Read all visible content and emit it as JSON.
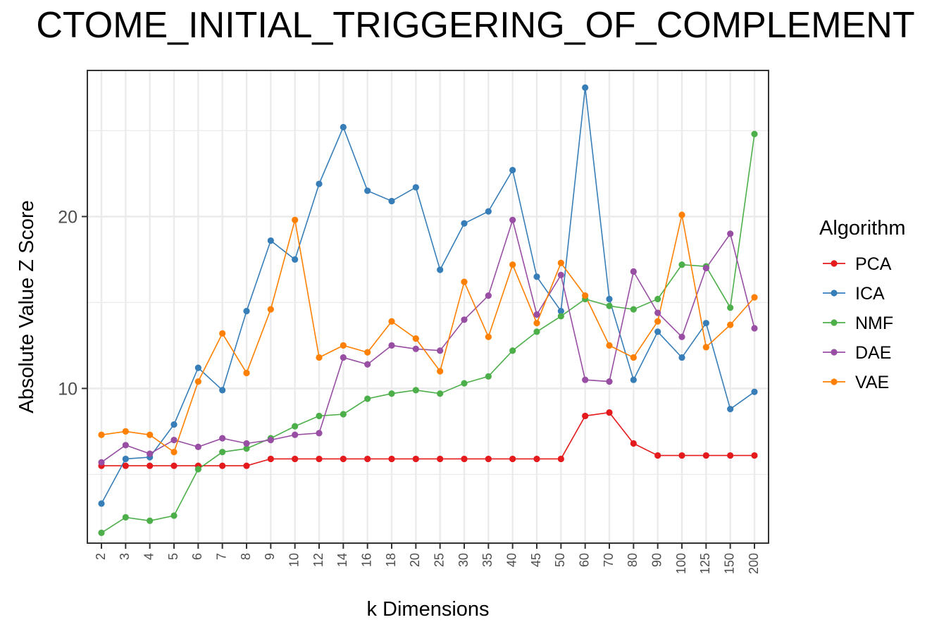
{
  "chart_data": {
    "type": "line",
    "title": "CTOME_INITIAL_TRIGGERING_OF_COMPLEMENT",
    "xlabel": "k Dimensions",
    "ylabel": "Absolute Value Z Score",
    "categories": [
      "2",
      "3",
      "4",
      "5",
      "6",
      "7",
      "8",
      "9",
      "10",
      "12",
      "14",
      "16",
      "18",
      "20",
      "25",
      "30",
      "35",
      "40",
      "45",
      "50",
      "60",
      "70",
      "80",
      "90",
      "100",
      "125",
      "150",
      "200"
    ],
    "y_ticks": [
      10,
      20
    ],
    "ylim": [
      1.0,
      28.5
    ],
    "grid": true,
    "legend_title": "Algorithm",
    "legend_position": "right",
    "series": [
      {
        "name": "PCA",
        "color": "#E41A1C",
        "values": [
          5.5,
          5.5,
          5.5,
          5.5,
          5.5,
          5.5,
          5.5,
          5.9,
          5.9,
          5.9,
          5.9,
          5.9,
          5.9,
          5.9,
          5.9,
          5.9,
          5.9,
          5.9,
          5.9,
          5.9,
          8.4,
          8.6,
          6.8,
          6.1,
          6.1,
          6.1,
          6.1,
          6.1
        ]
      },
      {
        "name": "ICA",
        "color": "#377EB8",
        "values": [
          3.3,
          5.9,
          6.0,
          7.9,
          11.2,
          9.9,
          14.5,
          18.6,
          17.5,
          21.9,
          25.2,
          21.5,
          20.9,
          21.7,
          16.9,
          19.6,
          20.3,
          22.7,
          16.5,
          14.5,
          27.5,
          15.2,
          10.5,
          13.3,
          11.8,
          13.8,
          8.8,
          9.8
        ]
      },
      {
        "name": "NMF",
        "color": "#4DAF4A",
        "values": [
          1.6,
          2.5,
          2.3,
          2.6,
          5.3,
          6.3,
          6.5,
          7.1,
          7.8,
          8.4,
          8.5,
          9.4,
          9.7,
          9.9,
          9.7,
          10.3,
          10.7,
          12.2,
          13.3,
          14.2,
          15.2,
          14.8,
          14.6,
          15.2,
          17.2,
          17.1,
          14.7,
          24.8
        ]
      },
      {
        "name": "DAE",
        "color": "#984EA3",
        "values": [
          5.7,
          6.7,
          6.2,
          7.0,
          6.6,
          7.1,
          6.8,
          7.0,
          7.3,
          7.4,
          11.8,
          11.4,
          12.5,
          12.3,
          12.2,
          14.0,
          15.4,
          19.8,
          14.3,
          16.6,
          10.5,
          10.4,
          16.8,
          14.4,
          13.0,
          17.0,
          19.0,
          13.5
        ]
      },
      {
        "name": "VAE",
        "color": "#FF7F00",
        "values": [
          7.3,
          7.5,
          7.3,
          6.3,
          10.4,
          13.2,
          10.9,
          14.6,
          19.8,
          11.8,
          12.5,
          12.1,
          13.9,
          12.9,
          11.0,
          16.2,
          13.0,
          17.2,
          13.8,
          17.3,
          15.4,
          12.5,
          11.8,
          13.9,
          20.1,
          12.4,
          13.7,
          15.3
        ]
      }
    ]
  }
}
